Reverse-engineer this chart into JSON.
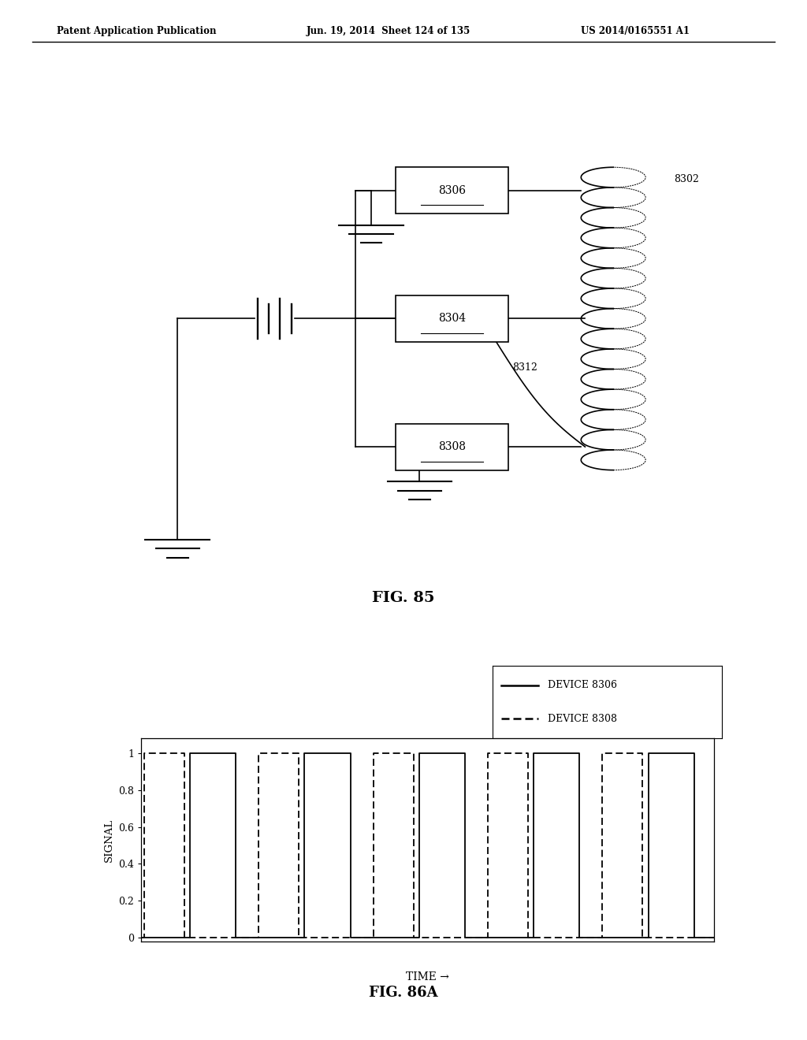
{
  "header_left": "Patent Application Publication",
  "header_mid": "Jun. 19, 2014  Sheet 124 of 135",
  "header_right": "US 2014/0165551 A1",
  "fig85_caption": "FIG. 85",
  "fig86a_caption": "FIG. 86A",
  "box_8306_label": "8306",
  "box_8304_label": "8304",
  "box_8308_label": "8308",
  "coil_label": "8302",
  "wire_label": "8312",
  "legend_label1": "DEVICE 8306",
  "legend_label2": "DEVICE 8308",
  "ylabel": "SIGNAL",
  "xlabel": "TIME →",
  "yticks": [
    0,
    0.2,
    0.4,
    0.6,
    0.8,
    1
  ],
  "bg_color": "#ffffff",
  "line_color": "#000000"
}
